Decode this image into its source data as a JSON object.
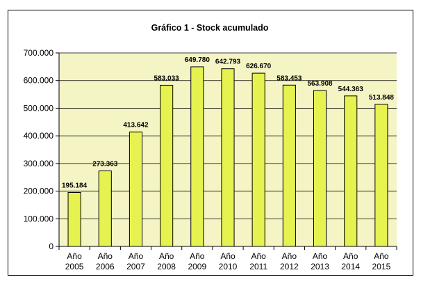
{
  "chart_data": {
    "type": "bar",
    "title": "Gráfico 1 - Stock acumulado",
    "xlabel": "",
    "ylabel": "",
    "categories": [
      [
        "Año",
        "2005"
      ],
      [
        "Año",
        "2006"
      ],
      [
        "Año",
        "2007"
      ],
      [
        "Año",
        "2008"
      ],
      [
        "Año",
        "2009"
      ],
      [
        "Año",
        "2010"
      ],
      [
        "Año",
        "2011"
      ],
      [
        "Año",
        "2012"
      ],
      [
        "Año",
        "2013"
      ],
      [
        "Año",
        "2014"
      ],
      [
        "Año",
        "2015"
      ]
    ],
    "values": [
      195184,
      273363,
      413642,
      583033,
      649780,
      642793,
      626670,
      583453,
      563908,
      544363,
      513848
    ],
    "value_labels": [
      "195.184",
      "273.363",
      "413.642",
      "583.033",
      "649.780",
      "642.793",
      "626.670",
      "583.453",
      "563.908",
      "544.363",
      "513.848"
    ],
    "y_ticks": [
      0,
      100000,
      200000,
      300000,
      400000,
      500000,
      600000,
      700000
    ],
    "y_tick_labels": [
      "0",
      "100.000",
      "200.000",
      "300.000",
      "400.000",
      "500.000",
      "600.000",
      "700.000"
    ],
    "ylim": [
      0,
      700000
    ],
    "grid": true,
    "legend": "none",
    "colors": {
      "bar_fill": "#e6f24f",
      "bar_stroke": "#000000",
      "plot_background": "#f4f4c4",
      "gridline": "#000000"
    }
  }
}
